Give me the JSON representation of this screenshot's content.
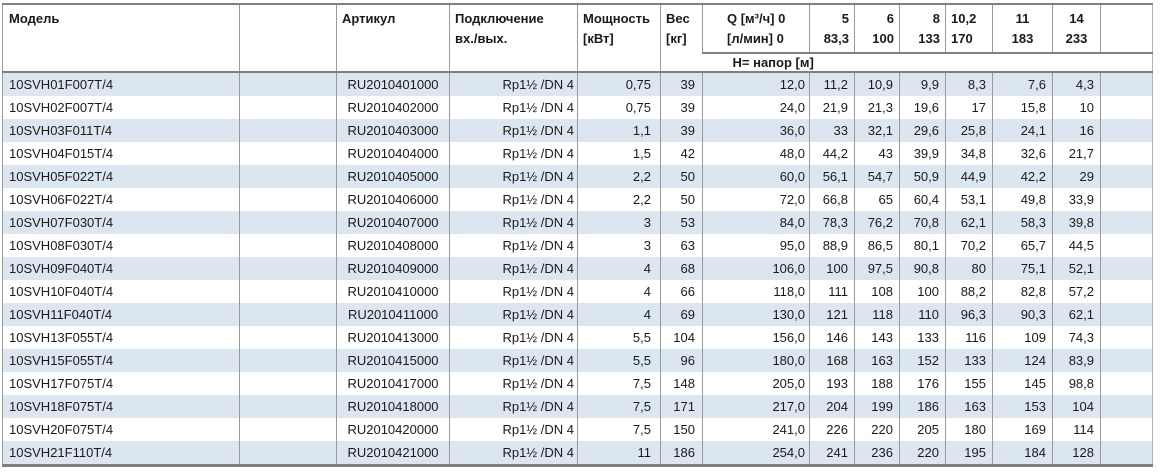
{
  "colors": {
    "row_stripe": "#dce6f1",
    "grid_border": "#9a9a9a",
    "strong_border": "#808080",
    "text": "#1a1a1a"
  },
  "table": {
    "columns": {
      "model": "Модель",
      "article": "Артикул",
      "connection_line1": "Подключение",
      "connection_line2": "вх./вых.",
      "power_line1": "Мощность",
      "power_line2": "[кВт]",
      "weight_line1": "Вес",
      "weight_line2": "[кг]",
      "q_line1": "Q [м³/ч] 0",
      "q_line2": "[л/мин] 0",
      "flow_cols": [
        {
          "m3h": "5",
          "lmin": "83,3"
        },
        {
          "m3h": "6",
          "lmin": "100"
        },
        {
          "m3h": "8",
          "lmin": "133"
        },
        {
          "m3h": "10,2",
          "lmin": "170"
        },
        {
          "m3h": "11",
          "lmin": "183"
        },
        {
          "m3h": "14",
          "lmin": "233"
        }
      ],
      "head_row_label": "Н= напор [м]"
    },
    "rows": [
      {
        "model": "10SVH01F007T/4",
        "article": "RU2010401000",
        "connection": "Rp1½ /DN 4",
        "power": "0,75",
        "weight": "39",
        "head": [
          "12,0",
          "11,2",
          "10,9",
          "9,9",
          "8,3",
          "7,6",
          "4,3"
        ]
      },
      {
        "model": "10SVH02F007T/4",
        "article": "RU2010402000",
        "connection": "Rp1½ /DN 4",
        "power": "0,75",
        "weight": "39",
        "head": [
          "24,0",
          "21,9",
          "21,3",
          "19,6",
          "17",
          "15,8",
          "10"
        ]
      },
      {
        "model": "10SVH03F011T/4",
        "article": "RU2010403000",
        "connection": "Rp1½ /DN 4",
        "power": "1,1",
        "weight": "39",
        "head": [
          "36,0",
          "33",
          "32,1",
          "29,6",
          "25,8",
          "24,1",
          "16"
        ]
      },
      {
        "model": "10SVH04F015T/4",
        "article": "RU2010404000",
        "connection": "Rp1½ /DN 4",
        "power": "1,5",
        "weight": "42",
        "head": [
          "48,0",
          "44,2",
          "43",
          "39,9",
          "34,8",
          "32,6",
          "21,7"
        ]
      },
      {
        "model": "10SVH05F022T/4",
        "article": "RU2010405000",
        "connection": "Rp1½ /DN 4",
        "power": "2,2",
        "weight": "50",
        "head": [
          "60,0",
          "56,1",
          "54,7",
          "50,9",
          "44,9",
          "42,2",
          "29"
        ]
      },
      {
        "model": "10SVH06F022T/4",
        "article": "RU2010406000",
        "connection": "Rp1½ /DN 4",
        "power": "2,2",
        "weight": "50",
        "head": [
          "72,0",
          "66,8",
          "65",
          "60,4",
          "53,1",
          "49,8",
          "33,9"
        ]
      },
      {
        "model": "10SVH07F030T/4",
        "article": "RU2010407000",
        "connection": "Rp1½ /DN 4",
        "power": "3",
        "weight": "53",
        "head": [
          "84,0",
          "78,3",
          "76,2",
          "70,8",
          "62,1",
          "58,3",
          "39,8"
        ]
      },
      {
        "model": "10SVH08F030T/4",
        "article": "RU2010408000",
        "connection": "Rp1½ /DN 4",
        "power": "3",
        "weight": "63",
        "head": [
          "95,0",
          "88,9",
          "86,5",
          "80,1",
          "70,2",
          "65,7",
          "44,5"
        ]
      },
      {
        "model": "10SVH09F040T/4",
        "article": "RU2010409000",
        "connection": "Rp1½ /DN 4",
        "power": "4",
        "weight": "68",
        "head": [
          "106,0",
          "100",
          "97,5",
          "90,8",
          "80",
          "75,1",
          "52,1"
        ]
      },
      {
        "model": "10SVH10F040T/4",
        "article": "RU2010410000",
        "connection": "Rp1½ /DN 4",
        "power": "4",
        "weight": "66",
        "head": [
          "118,0",
          "111",
          "108",
          "100",
          "88,2",
          "82,8",
          "57,2"
        ]
      },
      {
        "model": "10SVH11F040T/4",
        "article": "RU2010411000",
        "connection": "Rp1½ /DN 4",
        "power": "4",
        "weight": "69",
        "head": [
          "130,0",
          "121",
          "118",
          "110",
          "96,3",
          "90,3",
          "62,1"
        ]
      },
      {
        "model": "10SVH13F055T/4",
        "article": "RU2010413000",
        "connection": "Rp1½ /DN 4",
        "power": "5,5",
        "weight": "104",
        "head": [
          "156,0",
          "146",
          "143",
          "133",
          "116",
          "109",
          "74,3"
        ]
      },
      {
        "model": "10SVH15F055T/4",
        "article": "RU2010415000",
        "connection": "Rp1½ /DN 4",
        "power": "5,5",
        "weight": "96",
        "head": [
          "180,0",
          "168",
          "163",
          "152",
          "133",
          "124",
          "83,9"
        ]
      },
      {
        "model": "10SVH17F075T/4",
        "article": "RU2010417000",
        "connection": "Rp1½ /DN 4",
        "power": "7,5",
        "weight": "148",
        "head": [
          "205,0",
          "193",
          "188",
          "176",
          "155",
          "145",
          "98,8"
        ]
      },
      {
        "model": "10SVH18F075T/4",
        "article": "RU2010418000",
        "connection": "Rp1½ /DN 4",
        "power": "7,5",
        "weight": "171",
        "head": [
          "217,0",
          "204",
          "199",
          "186",
          "163",
          "153",
          "104"
        ]
      },
      {
        "model": "10SVH20F075T/4",
        "article": "RU2010420000",
        "connection": "Rp1½ /DN 4",
        "power": "7,5",
        "weight": "150",
        "head": [
          "241,0",
          "226",
          "220",
          "205",
          "180",
          "169",
          "114"
        ]
      },
      {
        "model": "10SVH21F110T/4",
        "article": "RU2010421000",
        "connection": "Rp1½ /DN 4",
        "power": "11",
        "weight": "186",
        "head": [
          "254,0",
          "241",
          "236",
          "220",
          "195",
          "184",
          "128"
        ]
      }
    ]
  }
}
